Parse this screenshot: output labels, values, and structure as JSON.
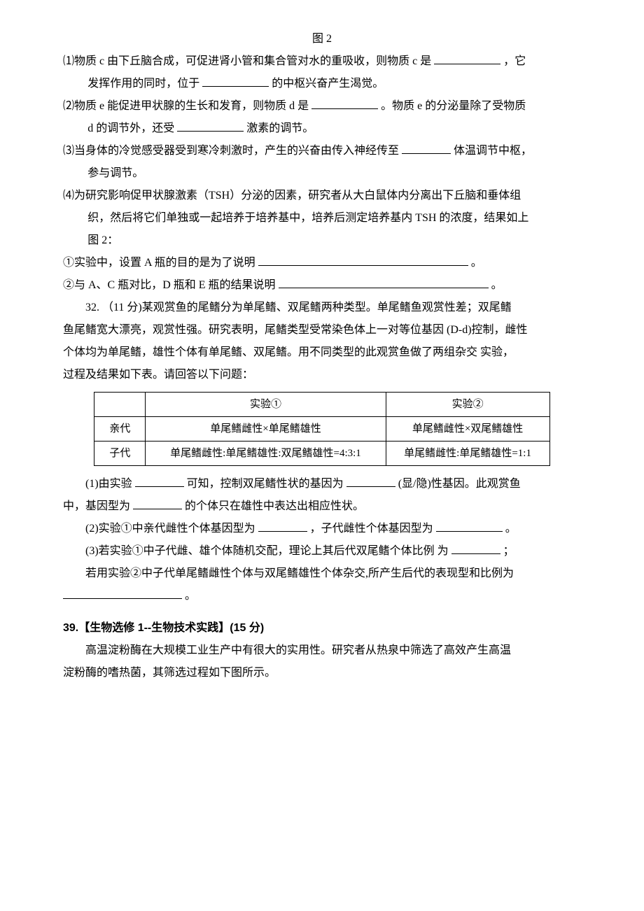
{
  "fig2_caption": "图 2",
  "q31": {
    "p1_a": "⑴物质 c 由下丘脑合成，可促进肾小管和集合管对水的重吸收，则物质 c 是",
    "p1_b": "，它",
    "p1_sub_a": "发挥作用的同时，位于",
    "p1_sub_b": "的中枢兴奋产生渴觉。",
    "p2_a": "⑵物质 e 能促进甲状腺的生长和发育，则物质 d 是",
    "p2_b": "。物质 e 的分泌量除了受物质",
    "p2_sub_a": "d 的调节外，还受",
    "p2_sub_b": "激素的调节。",
    "p3_a": "⑶当身体的冷觉感受器受到寒冷刺激时，产生的兴奋由传入神经传至",
    "p3_b": "体温调节中枢，",
    "p3_sub": "参与调节。",
    "p4_line1": "⑷为研究影响促甲状腺激素（TSH）分泌的因素，研究者从大白鼠体内分离出下丘脑和垂体组",
    "p4_line2": "织，然后将它们单独或一起培养于培养基中，培养后测定培养基内 TSH 的浓度，结果如上",
    "p4_line3": "图 2：",
    "p4_q1_a": "①实验中，设置 A 瓶的目的是为了说明",
    "p4_q1_b": "。",
    "p4_q2_a": "②与 A、C 瓶对比，D 瓶和 E 瓶的结果说明",
    "p4_q2_b": "。"
  },
  "q32": {
    "intro_a": "32.  （11 分)某观赏鱼的尾鳍分为单尾鳍、双尾鳍两种类型。单尾鳍鱼观赏性差；双尾鳍",
    "intro_b": "鱼尾鳍宽大漂亮，观赏性强。研究表明，尾鳍类型受常染色体上一对等位基因 (D-d)控制，雌性",
    "intro_c": "个体均为单尾鳍，雄性个体有单尾鳍、双尾鳍。用不同类型的此观赏鱼做了两组杂交 实验，",
    "intro_d": "过程及结果如下表。请回答以下问题：",
    "table": {
      "col_empty": "",
      "col1": "实验①",
      "col2": "实验②",
      "row1_hdr": "亲代",
      "row1_c1": "单尾鳍雌性×单尾鳍雄性",
      "row1_c2": "单尾鳍雌性×双尾鳍雄性",
      "row2_hdr": "子代",
      "row2_c1": "单尾鳍雌性:单尾鳍雄性:双尾鳍雄性=4:3:1",
      "row2_c2": "单尾鳍雌性:单尾鳍雄性=1:1"
    },
    "p1_a": "(1)由实验",
    "p1_b": "可知，控制双尾鳍性状的基因为",
    "p1_c": "(显/隐)性基因。此观赏鱼",
    "p1_line2_a": "中，基因型为",
    "p1_line2_b": "的个体只在雄性中表达出相应性状。",
    "p2_a": "(2)实验①中亲代雌性个体基因型为",
    "p2_b": "，子代雌性个体基因型为",
    "p2_c": "。",
    "p3_a": "(3)若实验①中子代雌、雄个体随机交配，理论上其后代双尾鳍个体比例 为 ",
    "p3_b": "；",
    "p3_line2": "若用实验②中子代单尾鳍雌性个体与双尾鳍雄性个体杂交,所产生后代的表现型和比例为",
    "p3_line3": "。"
  },
  "q39": {
    "heading": "39.【生物选修 1--生物技术实践】(15 分)",
    "line1": "高温淀粉酶在大规模工业生产中有很大的实用性。研究者从热泉中筛选了高效产生高温",
    "line2": "淀粉酶的嗜热菌，其筛选过程如下图所示。"
  }
}
